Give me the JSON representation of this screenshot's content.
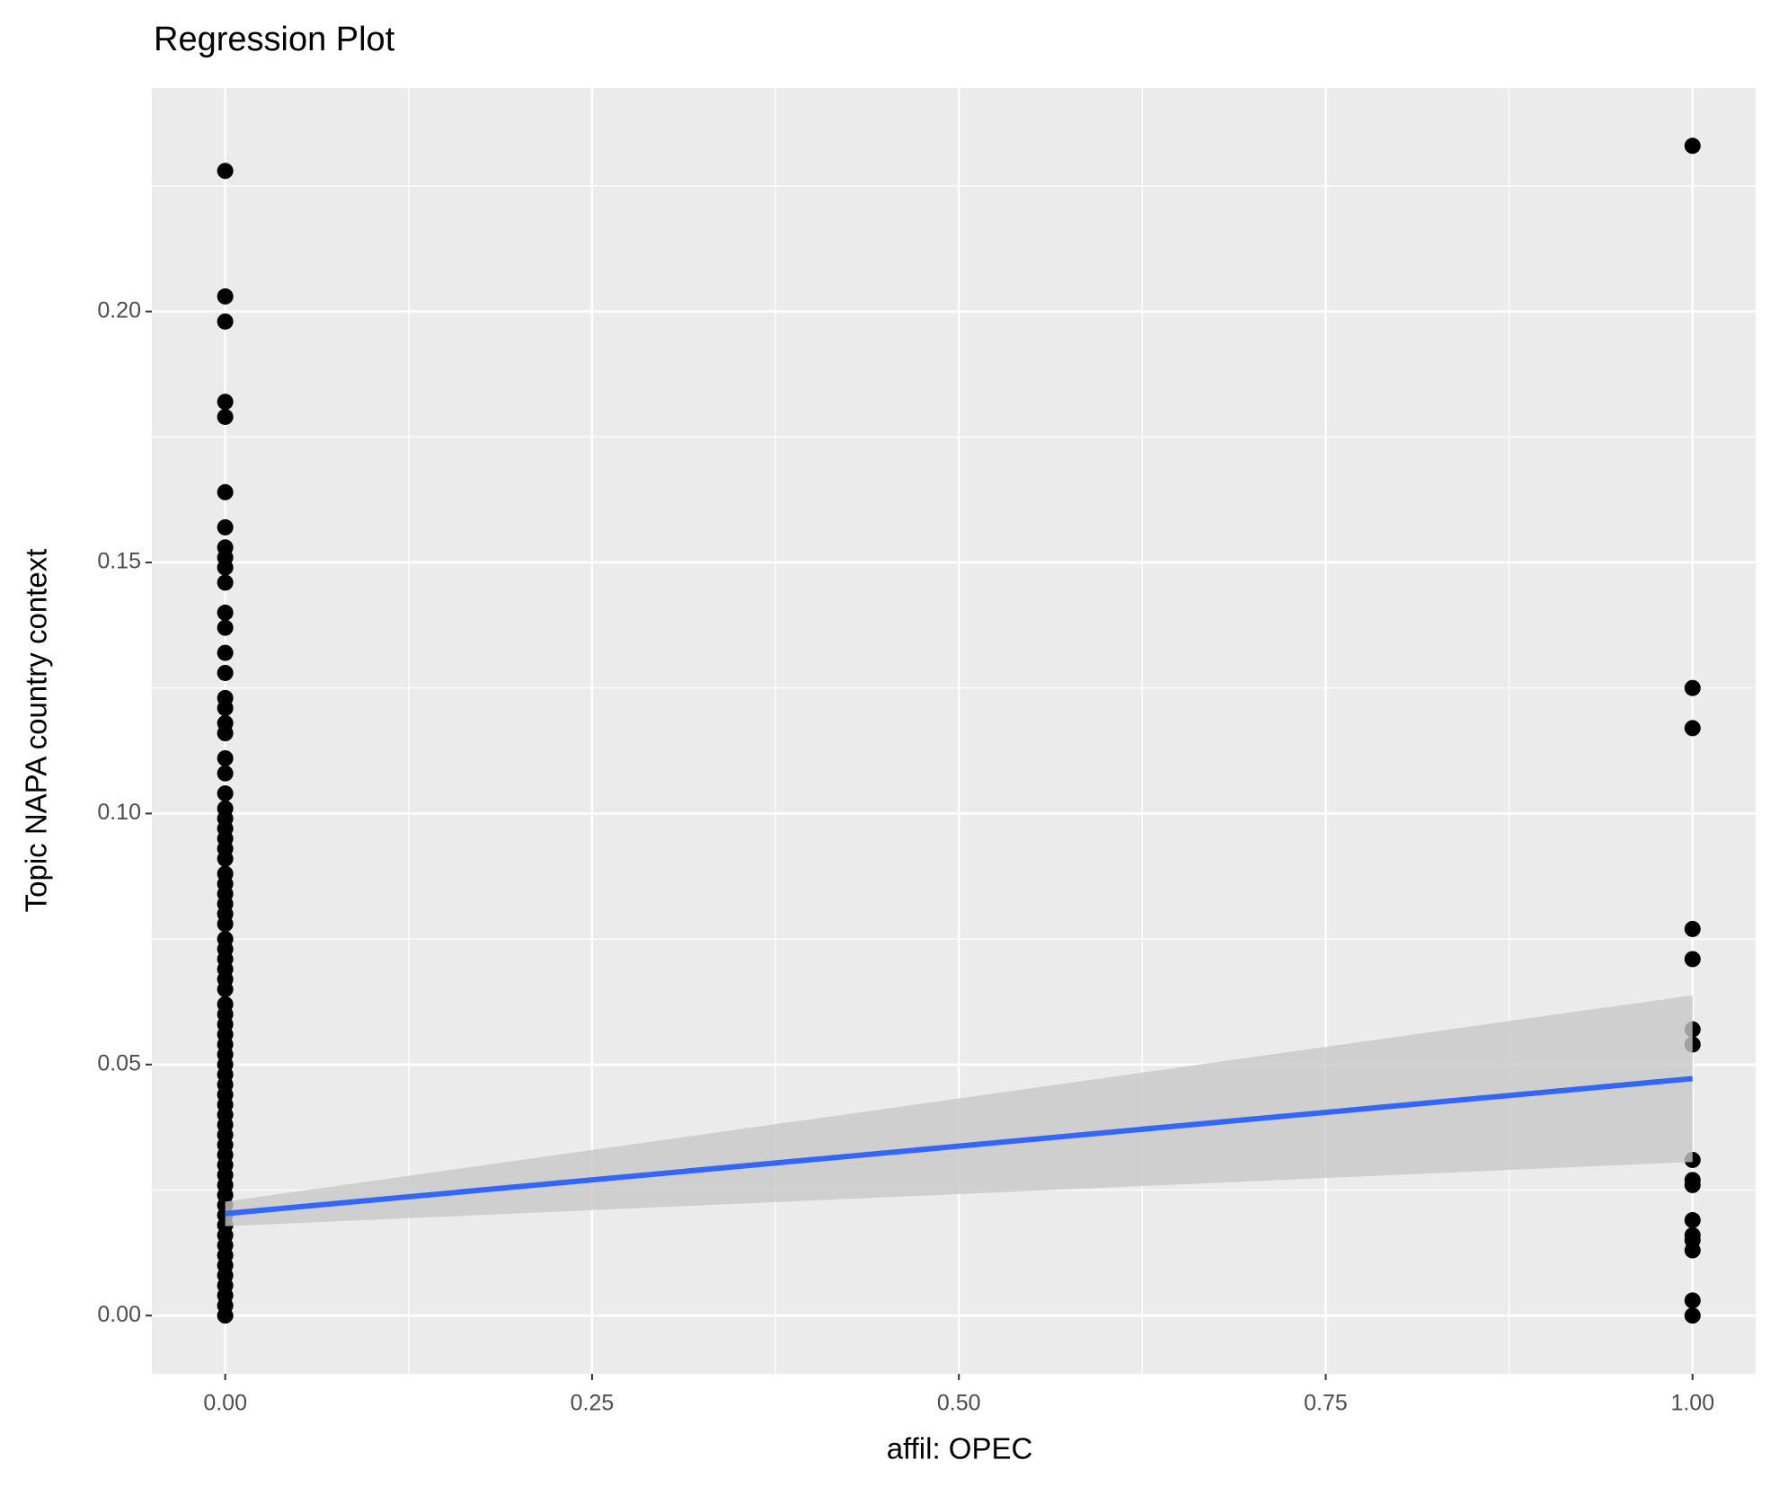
{
  "chart_data": {
    "type": "regression",
    "title": "Regression Plot",
    "x_label": "affil: OPEC",
    "y_label": "Topic NAPA country context",
    "xlim": [
      -0.05,
      1.043
    ],
    "ylim": [
      -0.0116,
      0.2445
    ],
    "xticks": [
      {
        "value": 0,
        "label": "0.00"
      },
      {
        "value": 0.25,
        "label": "0.25"
      },
      {
        "value": 0.5,
        "label": "0.50"
      },
      {
        "value": 0.75,
        "label": "0.75"
      },
      {
        "value": 1,
        "label": "1.00"
      }
    ],
    "yticks": [
      {
        "value": 0,
        "label": "0.00"
      },
      {
        "value": 0.05,
        "label": "0.05"
      },
      {
        "value": 0.1,
        "label": "0.10"
      },
      {
        "value": 0.15,
        "label": "0.15"
      },
      {
        "value": 0.2,
        "label": "0.20"
      }
    ],
    "grid": true,
    "point_color": "#000000",
    "groups": [
      {
        "x": 0,
        "y": [
          0.228,
          0.203,
          0.198,
          0.182,
          0.179,
          0.164,
          0.157,
          0.153,
          0.151,
          0.149,
          0.146,
          0.14,
          0.137,
          0.132,
          0.128,
          0.123,
          0.121,
          0.118,
          0.116,
          0.111,
          0.108,
          0.104,
          0.101,
          0.099,
          0.097,
          0.095,
          0.093,
          0.091,
          0.088,
          0.086,
          0.084,
          0.082,
          0.08,
          0.078,
          0.075,
          0.073,
          0.071,
          0.069,
          0.067,
          0.065,
          0.062,
          0.06,
          0.058,
          0.056,
          0.054,
          0.052,
          0.05,
          0.048,
          0.046,
          0.044,
          0.042,
          0.04,
          0.038,
          0.036,
          0.034,
          0.032,
          0.03,
          0.028,
          0.026,
          0.024,
          0.022,
          0.02,
          0.018,
          0.016,
          0.014,
          0.012,
          0.01,
          0.008,
          0.006,
          0.004,
          0.002,
          0.0
        ]
      },
      {
        "x": 1,
        "y": [
          0.233,
          0.125,
          0.117,
          0.077,
          0.071,
          0.057,
          0.054,
          0.031,
          0.027,
          0.026,
          0.019,
          0.016,
          0.015,
          0.013,
          0.003,
          0.0
        ]
      }
    ],
    "fit": {
      "color": "#3366ff",
      "band_color": "#c8c8c8",
      "x": [
        0,
        1
      ],
      "y": [
        0.0203,
        0.0472
      ],
      "lower": [
        0.0178,
        0.0306
      ],
      "upper": [
        0.0227,
        0.0638
      ]
    }
  }
}
